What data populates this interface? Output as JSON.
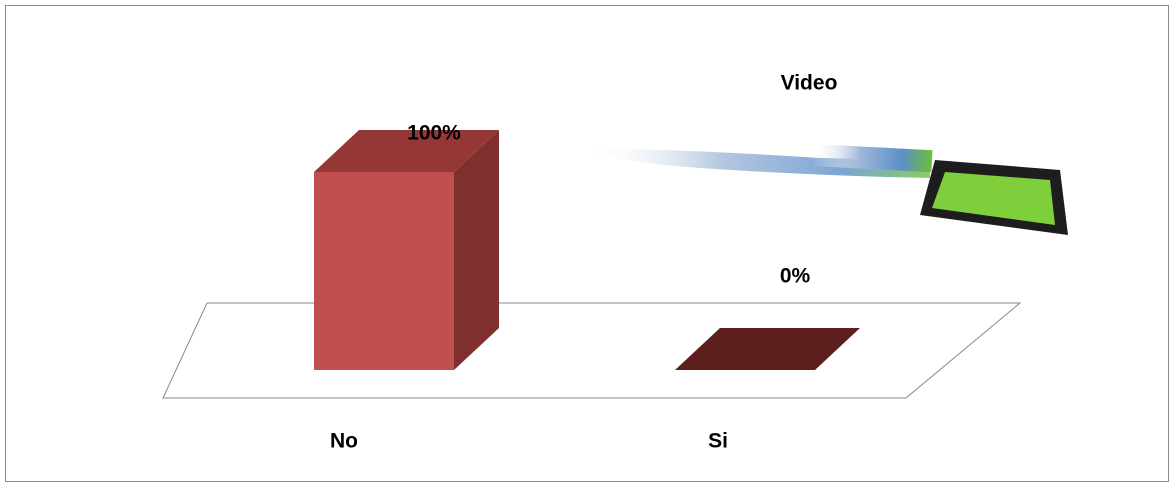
{
  "chart_data": {
    "type": "bar3d",
    "title": "Video",
    "categories": [
      "No",
      "Si"
    ],
    "values": [
      100,
      0
    ],
    "value_labels": [
      "100%",
      "0%"
    ],
    "color": "#c0504d"
  }
}
